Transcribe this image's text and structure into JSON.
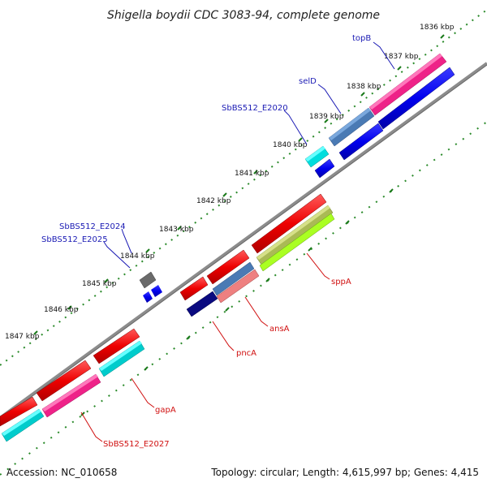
{
  "title": "Shigella boydii CDC 3083-94, complete genome",
  "ticks": [
    "1836 kbp",
    "1837 kbp",
    "1838 kbp",
    "1839 kbp",
    "1840 kbp",
    "1841 kbp",
    "1842 kbp",
    "1843 kbp",
    "1844 kbp",
    "1845 kbp",
    "1846 kbp",
    "1847 kbp"
  ],
  "genes_forward": [
    {
      "label": "topB",
      "color": "#1a1ab4"
    },
    {
      "label": "selD",
      "color": "#1a1ab4"
    },
    {
      "label": "SbBS512_E2020",
      "color": "#1a1ab4"
    },
    {
      "label": "SbBS512_E2024",
      "color": "#1a1ab4"
    },
    {
      "label": "SbBS512_E2025",
      "color": "#1a1ab4"
    }
  ],
  "genes_reverse": [
    {
      "label": "sppA",
      "color": "#d01010"
    },
    {
      "label": "ansA",
      "color": "#d01010"
    },
    {
      "label": "pncA",
      "color": "#d01010"
    },
    {
      "label": "gapA",
      "color": "#d01010"
    },
    {
      "label": "SbBS512_E2027",
      "color": "#d01010"
    }
  ],
  "footer": {
    "accession": "Accession: NC_010658",
    "topology": "Topology: circular; Length: 4,615,997 bp; Genes: 4,415"
  }
}
